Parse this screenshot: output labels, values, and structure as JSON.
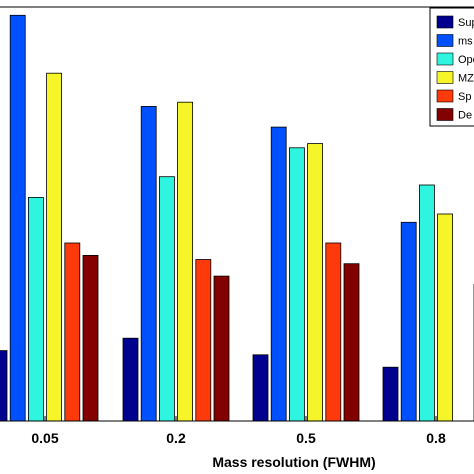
{
  "chart_data": {
    "type": "bar",
    "xlabel": "Mass resolution (FWHM)",
    "ylabel": "",
    "title": "",
    "categories": [
      "0.05",
      "0.2",
      "0.5",
      "0.8"
    ],
    "ylim": [
      0,
      100
    ],
    "grid": false,
    "legend_position": "top-right",
    "series": [
      {
        "name": "Sup",
        "color": "#00008f",
        "values": [
          17,
          20,
          16,
          13
        ]
      },
      {
        "name": "ms",
        "color": "#0050ff",
        "values": [
          98,
          76,
          71,
          48
        ]
      },
      {
        "name": "Ope",
        "color": "#2ff5e0",
        "values": [
          54,
          59,
          66,
          57
        ]
      },
      {
        "name": "MZ",
        "color": "#f5f52a",
        "values": [
          84,
          77,
          67,
          50
        ]
      },
      {
        "name": "Sp",
        "color": "#ff3a0a",
        "values": [
          43,
          39,
          43,
          0
        ]
      },
      {
        "name": "De",
        "color": "#820000",
        "values": [
          40,
          35,
          38,
          33
        ]
      }
    ]
  }
}
